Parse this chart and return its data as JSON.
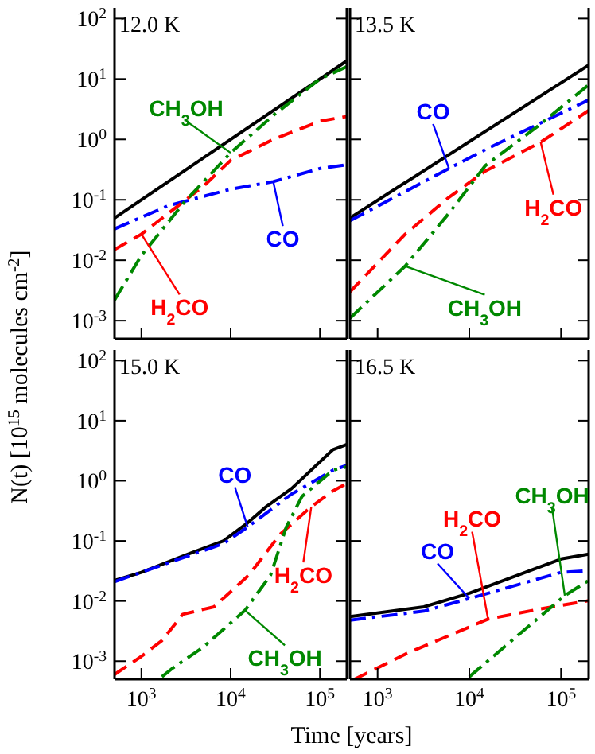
{
  "chart_data": [
    {
      "type": "line",
      "title": "12.0 K",
      "ylabel": "N(t) [10$^{15}$ molecules cm$^{-2}$]",
      "log": "xy",
      "xlim": [
        500,
        200000
      ],
      "ylim": [
        0.0005,
        150
      ],
      "xticks": [
        {
          "value": 1000,
          "label": null
        },
        {
          "value": 10000,
          "label": null
        },
        {
          "value": 100000,
          "label": null
        }
      ],
      "yticks": [
        {
          "value": 0.001,
          "label": "10$^{-3}$"
        },
        {
          "value": 0.01,
          "label": "10$^{-2}$"
        },
        {
          "value": 0.1,
          "label": "10$^{-1}$"
        },
        {
          "value": 1,
          "label": "10$^{0}$"
        },
        {
          "value": 10,
          "label": "10$^{1}$"
        },
        {
          "value": 100,
          "label": "10$^{2}$"
        }
      ],
      "tick_labels": "y",
      "series": [
        {
          "color": "#000000",
          "line_style": "solid",
          "x": [
            500,
            200000
          ],
          "values": [
            0.05,
            20
          ]
        },
        {
          "name": "CO",
          "color": "#0000ff",
          "line_style": "dashdot",
          "x": [
            500,
            2000,
            10000,
            30000,
            100000,
            200000
          ],
          "values": [
            0.033,
            0.08,
            0.15,
            0.2,
            0.33,
            0.38
          ]
        },
        {
          "name": "H$_{2}$CO",
          "color": "#ff0000",
          "line_style": "dashed",
          "x": [
            500,
            1000,
            5000,
            10000,
            30000,
            100000,
            200000
          ],
          "values": [
            0.015,
            0.027,
            0.17,
            0.45,
            1.0,
            2.0,
            2.4
          ]
        },
        {
          "name": "CH$_{3}$OH",
          "color": "#008800",
          "line_style": "dashdot",
          "x": [
            500,
            1000,
            3000,
            10000,
            30000,
            100000,
            200000
          ],
          "values": [
            0.0022,
            0.012,
            0.09,
            0.6,
            2.5,
            10,
            16
          ]
        }
      ]
    },
    {
      "type": "line",
      "title": "13.5 K",
      "log": "xy",
      "xlim": [
        500,
        200000
      ],
      "ylim": [
        0.0005,
        150
      ],
      "xticks": [
        {
          "value": 1000,
          "label": null
        },
        {
          "value": 10000,
          "label": null
        },
        {
          "value": 100000,
          "label": null
        }
      ],
      "yticks": [
        {
          "value": 0.001,
          "label": null
        },
        {
          "value": 0.01,
          "label": null
        },
        {
          "value": 0.1,
          "label": null
        },
        {
          "value": 1,
          "label": null
        },
        {
          "value": 10,
          "label": null
        },
        {
          "value": 100,
          "label": null
        }
      ],
      "tick_labels": false,
      "series": [
        {
          "color": "#000000",
          "line_style": "solid",
          "x": [
            500,
            200000
          ],
          "values": [
            0.05,
            17
          ]
        },
        {
          "name": "CO",
          "color": "#0000ff",
          "line_style": "dashdot",
          "x": [
            500,
            6000,
            15000,
            200000
          ],
          "values": [
            0.045,
            0.33,
            0.68,
            4.5
          ]
        },
        {
          "name": "H$_{2}$CO",
          "color": "#ff0000",
          "line_style": "dashed",
          "x": [
            500,
            2000,
            6000,
            15000,
            60000,
            200000
          ],
          "values": [
            0.003,
            0.027,
            0.11,
            0.3,
            0.9,
            3
          ]
        },
        {
          "name": "CH$_{3}$OH",
          "color": "#008800",
          "line_style": "dashdot",
          "x": [
            500,
            2000,
            6000,
            15000,
            60000,
            200000
          ],
          "values": [
            0.0011,
            0.008,
            0.06,
            0.37,
            1.8,
            8
          ]
        }
      ]
    },
    {
      "type": "line",
      "title": "15.0 K",
      "xlabel": "Time [years]",
      "log": "xy",
      "xlim": [
        500,
        200000
      ],
      "ylim": [
        0.0005,
        150
      ],
      "xticks": [
        {
          "value": 1000,
          "label": "10$^{3}$"
        },
        {
          "value": 10000,
          "label": "10$^{4}$"
        },
        {
          "value": 100000,
          "label": "10$^{5}$"
        }
      ],
      "yticks": [
        {
          "value": 0.001,
          "label": "10$^{-3}$"
        },
        {
          "value": 0.01,
          "label": "10$^{-2}$"
        },
        {
          "value": 0.1,
          "label": "10$^{-1}$"
        },
        {
          "value": 1,
          "label": "10$^{0}$"
        },
        {
          "value": 10,
          "label": "10$^{1}$"
        },
        {
          "value": 100,
          "label": "10$^{2}$"
        }
      ],
      "series": [
        {
          "color": "#000000",
          "line_style": "solid",
          "x": [
            500,
            1000,
            3300,
            8300,
            15500,
            25000,
            48000,
            140000,
            200000
          ],
          "values": [
            0.022,
            0.03,
            0.06,
            0.1,
            0.2,
            0.37,
            0.74,
            3.3,
            4
          ]
        },
        {
          "name": "CO",
          "color": "#0000ff",
          "line_style": "dashdot",
          "x": [
            500,
            8300,
            15500,
            48000,
            140000,
            200000
          ],
          "values": [
            0.021,
            0.09,
            0.17,
            0.6,
            1.5,
            1.8
          ]
        },
        {
          "name": "H$_{2}$CO",
          "color": "#ff0000",
          "line_style": "dashed",
          "x": [
            500,
            1000,
            1700,
            2900,
            6500,
            16000,
            36000,
            80000,
            140000,
            200000
          ],
          "values": [
            0.0006,
            0.0012,
            0.0022,
            0.006,
            0.008,
            0.027,
            0.13,
            0.37,
            0.68,
            0.9
          ]
        },
        {
          "name": "CH$_{3}$OH",
          "color": "#008800",
          "line_style": "dashdot",
          "x": [
            1700,
            2200,
            4900,
            14500,
            28000,
            42000,
            63000,
            140000,
            200000
          ],
          "values": [
            0.00055,
            0.00075,
            0.0017,
            0.007,
            0.027,
            0.17,
            0.55,
            1.5,
            1.7
          ]
        }
      ]
    },
    {
      "type": "line",
      "title": "16.5 K",
      "log": "xy",
      "xlim": [
        500,
        200000
      ],
      "ylim": [
        0.0005,
        150
      ],
      "xticks": [
        {
          "value": 1000,
          "label": "10$^{3}$"
        },
        {
          "value": 10000,
          "label": "10$^{4}$"
        },
        {
          "value": 100000,
          "label": "10$^{5}$"
        }
      ],
      "yticks": [
        {
          "value": 0.001,
          "label": null
        },
        {
          "value": 0.01,
          "label": null
        },
        {
          "value": 0.1,
          "label": null
        },
        {
          "value": 1,
          "label": null
        },
        {
          "value": 10,
          "label": null
        },
        {
          "value": 100,
          "label": null
        }
      ],
      "tick_labels": "x",
      "series": [
        {
          "color": "#000000",
          "line_style": "solid",
          "x": [
            500,
            3200,
            10000,
            100000,
            200000
          ],
          "values": [
            0.0055,
            0.008,
            0.0135,
            0.05,
            0.06
          ]
        },
        {
          "name": "CO",
          "color": "#0000ff",
          "line_style": "dashdot",
          "x": [
            500,
            3200,
            10000,
            100000,
            200000
          ],
          "values": [
            0.0048,
            0.0068,
            0.011,
            0.03,
            0.032
          ]
        },
        {
          "name": "H$_{2}$CO",
          "color": "#ff0000",
          "line_style": "dashed",
          "x": [
            560,
            2100,
            10000,
            16000,
            60000,
            200000
          ],
          "values": [
            0.0005,
            0.00135,
            0.0037,
            0.005,
            0.0074,
            0.0101
          ]
        },
        {
          "name": "CH$_{3}$OH",
          "color": "#008800",
          "line_style": "dashdot",
          "x": [
            10000,
            32000,
            110000,
            200000
          ],
          "values": [
            0.00055,
            0.0025,
            0.0123,
            0.022
          ]
        }
      ]
    }
  ]
}
